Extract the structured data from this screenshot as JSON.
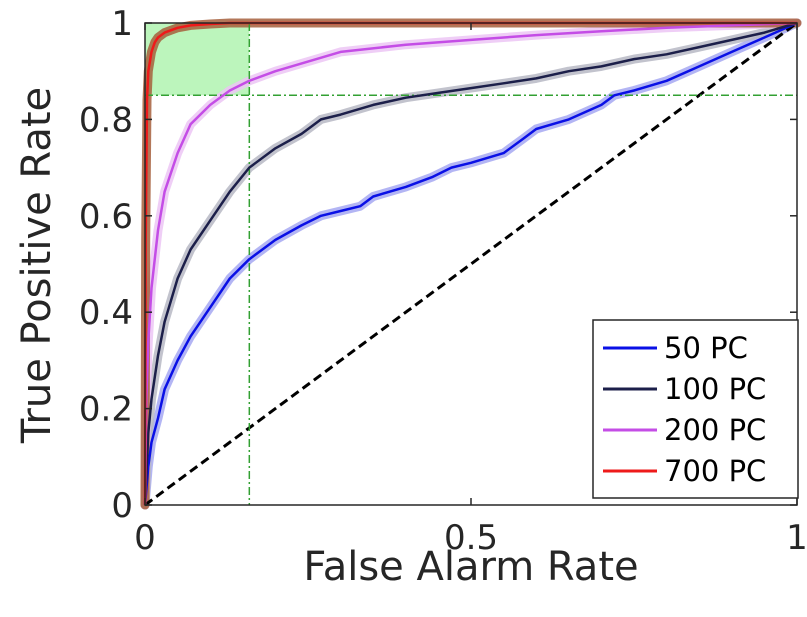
{
  "chart_data": {
    "type": "line",
    "title": "",
    "xlabel": "False Alarm Rate",
    "ylabel": "True Positive Rate",
    "xlim": [
      0,
      1
    ],
    "ylim": [
      0,
      1
    ],
    "xticks": [
      {
        "value": 0,
        "label": "0"
      },
      {
        "value": 0.5,
        "label": "0.5"
      },
      {
        "value": 1,
        "label": "1"
      }
    ],
    "yticks": [
      {
        "value": 0,
        "label": "0"
      },
      {
        "value": 0.2,
        "label": "0.2"
      },
      {
        "value": 0.4,
        "label": "0.4"
      },
      {
        "value": 0.6,
        "label": "0.6"
      },
      {
        "value": 0.8,
        "label": "0.8"
      },
      {
        "value": 1,
        "label": "1"
      }
    ],
    "grid": false,
    "legend_position": "bottom-right",
    "reference_lines": {
      "vertical_x": 0.16,
      "horizontal_y": 0.85,
      "color": "#33a033",
      "highlight_region": {
        "x": [
          0,
          0.16
        ],
        "y": [
          0.85,
          1
        ],
        "color": "#90ee90"
      }
    },
    "chance_line": {
      "x": [
        0,
        1
      ],
      "y": [
        0,
        1
      ],
      "color": "#000000",
      "style": "dashed"
    },
    "series": [
      {
        "name": "50 PC",
        "color": "#0a10e6",
        "band_color": "#a6a8f2",
        "x": [
          0,
          0.005,
          0.01,
          0.02,
          0.03,
          0.05,
          0.07,
          0.1,
          0.13,
          0.16,
          0.2,
          0.24,
          0.27,
          0.3,
          0.33,
          0.35,
          0.4,
          0.44,
          0.47,
          0.5,
          0.55,
          0.58,
          0.6,
          0.65,
          0.7,
          0.72,
          0.75,
          0.8,
          0.85,
          0.9,
          0.95,
          1
        ],
        "y": [
          0,
          0.08,
          0.13,
          0.18,
          0.24,
          0.3,
          0.35,
          0.41,
          0.47,
          0.51,
          0.55,
          0.58,
          0.6,
          0.61,
          0.62,
          0.64,
          0.66,
          0.68,
          0.7,
          0.71,
          0.73,
          0.76,
          0.78,
          0.8,
          0.83,
          0.85,
          0.86,
          0.88,
          0.91,
          0.94,
          0.97,
          1
        ]
      },
      {
        "name": "100 PC",
        "color": "#1c1f4a",
        "band_color": "#b7b8c4",
        "x": [
          0,
          0.005,
          0.01,
          0.02,
          0.03,
          0.05,
          0.07,
          0.1,
          0.13,
          0.16,
          0.2,
          0.24,
          0.27,
          0.3,
          0.35,
          0.4,
          0.45,
          0.5,
          0.55,
          0.6,
          0.65,
          0.7,
          0.75,
          0.8,
          0.85,
          0.9,
          0.95,
          1
        ],
        "y": [
          0,
          0.15,
          0.22,
          0.31,
          0.38,
          0.47,
          0.53,
          0.59,
          0.65,
          0.7,
          0.74,
          0.77,
          0.8,
          0.81,
          0.83,
          0.845,
          0.855,
          0.865,
          0.875,
          0.885,
          0.9,
          0.91,
          0.925,
          0.935,
          0.95,
          0.965,
          0.98,
          1
        ]
      },
      {
        "name": "200 PC",
        "color": "#c44de6",
        "band_color": "#ecc6f5",
        "x": [
          0,
          0.002,
          0.005,
          0.01,
          0.02,
          0.03,
          0.05,
          0.07,
          0.1,
          0.13,
          0.16,
          0.2,
          0.25,
          0.3,
          0.4,
          0.5,
          0.6,
          0.7,
          0.8,
          0.9,
          1
        ],
        "y": [
          0,
          0.22,
          0.34,
          0.45,
          0.57,
          0.65,
          0.73,
          0.79,
          0.83,
          0.86,
          0.88,
          0.9,
          0.92,
          0.94,
          0.955,
          0.965,
          0.975,
          0.983,
          0.99,
          0.995,
          1
        ]
      },
      {
        "name": "700 PC",
        "color": "#ee1a1a",
        "band_color": "#a65f3c",
        "x": [
          0,
          0.001,
          0.003,
          0.005,
          0.01,
          0.015,
          0.02,
          0.03,
          0.04,
          0.05,
          0.07,
          0.1,
          0.13,
          0.16,
          1
        ],
        "y": [
          0,
          0.55,
          0.84,
          0.9,
          0.94,
          0.96,
          0.97,
          0.98,
          0.985,
          0.99,
          0.995,
          0.998,
          1,
          1,
          1
        ]
      }
    ]
  }
}
